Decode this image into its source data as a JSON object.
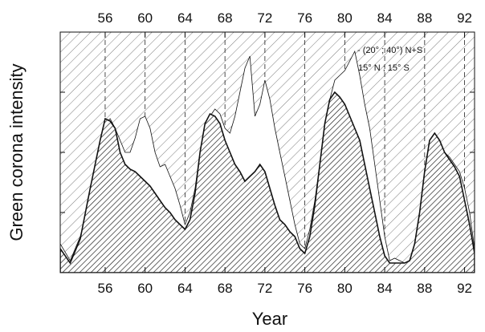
{
  "chart_data": {
    "type": "area",
    "xlabel": "Year",
    "ylabel": "Green corona intensity",
    "xlim": [
      51.5,
      93.0
    ],
    "ylim": [
      0,
      1
    ],
    "xticks": [
      56,
      60,
      64,
      68,
      72,
      76,
      80,
      84,
      88,
      92
    ],
    "grid": "vertical dashed lines at major ticks",
    "legend": {
      "position": "top-right",
      "entries": [
        "- (20° ; 40°) N+S",
        "15° N ; 15° S"
      ]
    },
    "series": [
      {
        "name": "- (20° ; 40°) N+S",
        "style": "white fill, thin outline",
        "x": [
          51.5,
          52.5,
          53.5,
          54.5,
          55.5,
          56.0,
          56.5,
          57.0,
          57.5,
          58.0,
          58.5,
          59.0,
          59.5,
          60.0,
          60.5,
          61.0,
          61.5,
          62.0,
          62.5,
          63.0,
          63.5,
          64.0,
          64.5,
          65.0,
          65.5,
          66.0,
          66.5,
          67.0,
          67.5,
          68.0,
          68.5,
          69.0,
          69.5,
          70.0,
          70.5,
          71.0,
          71.5,
          72.0,
          72.5,
          73.0,
          73.5,
          74.0,
          74.5,
          75.0,
          75.5,
          76.0,
          76.5,
          77.0,
          77.5,
          78.0,
          78.5,
          79.0,
          79.5,
          80.0,
          80.5,
          81.0,
          81.5,
          82.0,
          82.5,
          83.0,
          83.5,
          84.0,
          84.5,
          85.0,
          85.5,
          86.0,
          86.5,
          87.0,
          87.5,
          88.0,
          88.5,
          89.0,
          89.5,
          90.0,
          90.5,
          91.0,
          91.5,
          92.0,
          92.5,
          93.0
        ],
        "y": [
          0.12,
          0.05,
          0.15,
          0.3,
          0.5,
          0.62,
          0.64,
          0.6,
          0.55,
          0.5,
          0.5,
          0.56,
          0.64,
          0.65,
          0.6,
          0.5,
          0.44,
          0.45,
          0.4,
          0.35,
          0.28,
          0.2,
          0.25,
          0.35,
          0.5,
          0.6,
          0.65,
          0.68,
          0.66,
          0.6,
          0.58,
          0.65,
          0.75,
          0.85,
          0.9,
          0.65,
          0.7,
          0.8,
          0.72,
          0.6,
          0.5,
          0.4,
          0.3,
          0.2,
          0.12,
          0.1,
          0.18,
          0.3,
          0.45,
          0.6,
          0.72,
          0.8,
          0.82,
          0.84,
          0.88,
          0.92,
          0.82,
          0.7,
          0.6,
          0.45,
          0.3,
          0.15,
          0.05,
          0.06,
          0.05,
          0.04,
          0.05,
          0.12,
          0.25,
          0.4,
          0.5,
          0.55,
          0.54,
          0.5,
          0.48,
          0.45,
          0.42,
          0.35,
          0.25,
          0.1
        ]
      },
      {
        "name": "15° N ; 15° S",
        "style": "dense hatched fill, heavy outline",
        "x": [
          51.5,
          52.5,
          53.5,
          54.5,
          55.5,
          56.0,
          56.5,
          57.0,
          57.5,
          58.0,
          58.5,
          59.0,
          59.5,
          60.0,
          60.5,
          61.0,
          61.5,
          62.0,
          62.5,
          63.0,
          63.5,
          64.0,
          64.5,
          65.0,
          65.5,
          66.0,
          66.5,
          67.0,
          67.5,
          68.0,
          68.5,
          69.0,
          69.5,
          70.0,
          70.5,
          71.0,
          71.5,
          72.0,
          72.5,
          73.0,
          73.5,
          74.0,
          74.5,
          75.0,
          75.5,
          76.0,
          76.5,
          77.0,
          77.5,
          78.0,
          78.5,
          79.0,
          79.5,
          80.0,
          80.5,
          81.0,
          81.5,
          82.0,
          82.5,
          83.0,
          83.5,
          84.0,
          84.5,
          85.0,
          85.5,
          86.0,
          86.5,
          87.0,
          87.5,
          88.0,
          88.5,
          89.0,
          89.5,
          90.0,
          90.5,
          91.0,
          91.5,
          92.0,
          92.5,
          93.0
        ],
        "y": [
          0.1,
          0.04,
          0.14,
          0.35,
          0.55,
          0.64,
          0.63,
          0.6,
          0.5,
          0.45,
          0.43,
          0.42,
          0.4,
          0.38,
          0.36,
          0.33,
          0.3,
          0.27,
          0.25,
          0.22,
          0.2,
          0.18,
          0.22,
          0.33,
          0.5,
          0.62,
          0.66,
          0.65,
          0.62,
          0.55,
          0.5,
          0.45,
          0.42,
          0.38,
          0.4,
          0.42,
          0.45,
          0.42,
          0.35,
          0.28,
          0.22,
          0.2,
          0.17,
          0.15,
          0.1,
          0.08,
          0.15,
          0.28,
          0.45,
          0.62,
          0.72,
          0.75,
          0.73,
          0.7,
          0.65,
          0.6,
          0.55,
          0.45,
          0.35,
          0.25,
          0.15,
          0.07,
          0.04,
          0.04,
          0.04,
          0.04,
          0.05,
          0.12,
          0.25,
          0.42,
          0.55,
          0.58,
          0.55,
          0.5,
          0.47,
          0.44,
          0.4,
          0.3,
          0.2,
          0.08
        ]
      }
    ]
  }
}
